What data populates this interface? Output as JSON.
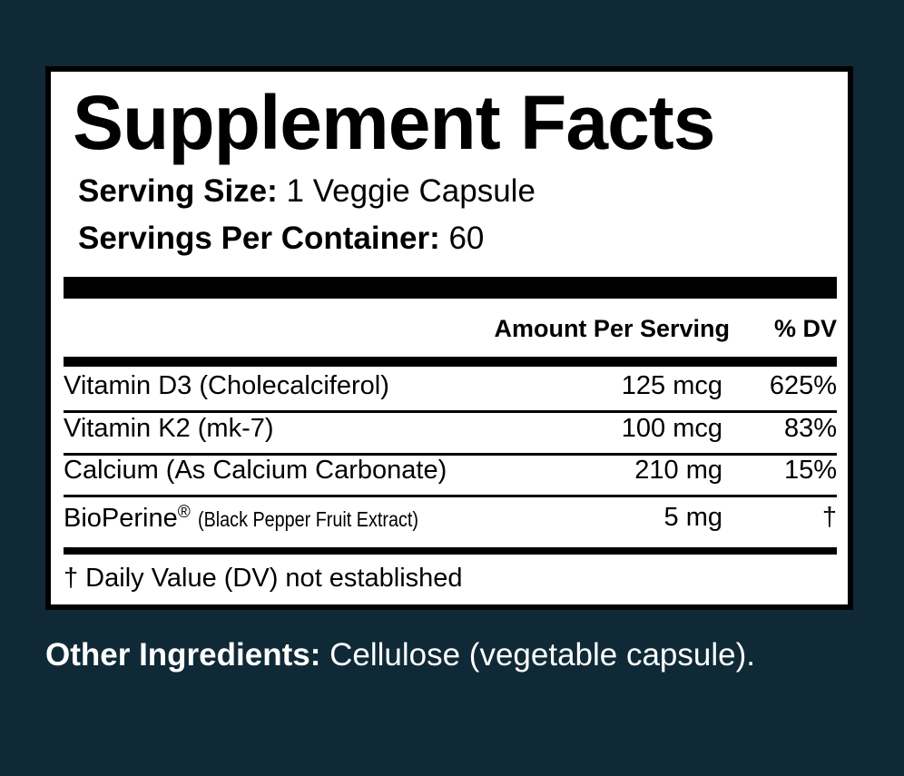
{
  "label": {
    "title": "Supplement Facts",
    "serving_size": {
      "label": "Serving Size:",
      "value": "1 Veggie Capsule"
    },
    "servings_per_container": {
      "label": "Servings Per Container:",
      "value": "60"
    },
    "header": {
      "amount": "Amount Per Serving",
      "dv": "% DV"
    },
    "rows": [
      {
        "name": "Vitamin D3 (Cholecalciferol)",
        "amount": "125 mcg",
        "dv": "625%"
      },
      {
        "name": "Vitamin K2 (mk-7)",
        "amount": "100 mcg",
        "dv": "83%"
      },
      {
        "name": "Calcium (As Calcium Carbonate)",
        "amount": "210 mg",
        "dv": "15%"
      },
      {
        "name": "BioPerine",
        "mark": "®",
        "note": "(Black Pepper Fruit Extract)",
        "amount": "5 mg",
        "dv": "†"
      }
    ],
    "footnote": "† Daily Value (DV) not established"
  },
  "other_ingredients": {
    "label": "Other Ingredients:",
    "value": "Cellulose (vegetable capsule)."
  }
}
